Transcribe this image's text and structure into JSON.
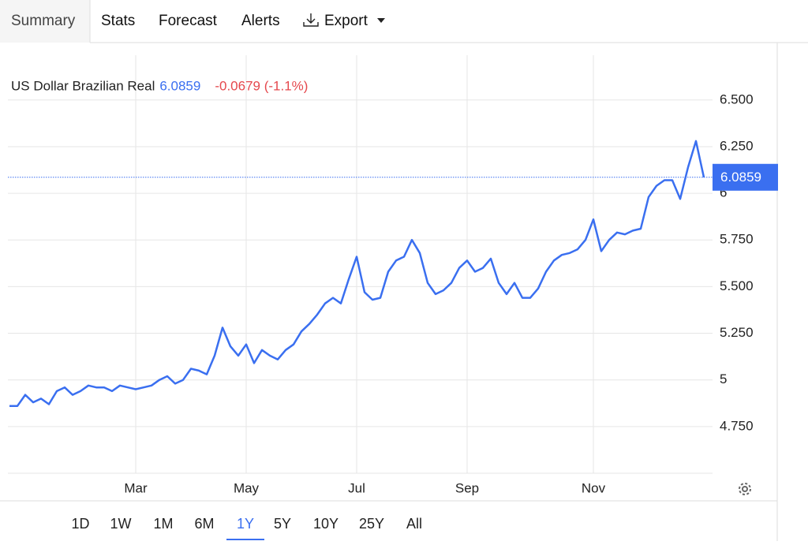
{
  "tabs": [
    "Summary",
    "Stats",
    "Forecast",
    "Alerts",
    "Export"
  ],
  "ranges": [
    "1D",
    "1W",
    "1M",
    "6M",
    "1Y",
    "5Y",
    "10Y",
    "25Y",
    "All"
  ],
  "selected_range": "1Y",
  "chart_data": {
    "type": "line",
    "title": "US Dollar Brazilian Real",
    "change": "-0.0679 (-1.1%)",
    "x": [
      0,
      1,
      2,
      3,
      4,
      5,
      6,
      7,
      8,
      9,
      10,
      11,
      12,
      13,
      14,
      15,
      16,
      17,
      18,
      19,
      20,
      21,
      22,
      23,
      24,
      25,
      26,
      27,
      28,
      29,
      30,
      31,
      32,
      33,
      34,
      35,
      36,
      37,
      38,
      39,
      40,
      41,
      42,
      43,
      44,
      45,
      46,
      47,
      48,
      49,
      50,
      51,
      52,
      53,
      54,
      55,
      56,
      57,
      58,
      59,
      60,
      61,
      62,
      63,
      64,
      65,
      66,
      67,
      68,
      69,
      70,
      71,
      72,
      73,
      74,
      75,
      76,
      77,
      78,
      79,
      80,
      81,
      82,
      83,
      84,
      85,
      86,
      87,
      88
    ],
    "series": [
      {
        "name": "US Dollar Brazilian Real",
        "color": "#3a6ff0",
        "values": [
          4.86,
          4.86,
          4.92,
          4.88,
          4.9,
          4.87,
          4.94,
          4.96,
          4.92,
          4.94,
          4.97,
          4.96,
          4.96,
          4.94,
          4.97,
          4.96,
          4.95,
          4.96,
          4.97,
          5.0,
          5.02,
          4.98,
          5.0,
          5.06,
          5.05,
          5.03,
          5.13,
          5.28,
          5.18,
          5.13,
          5.19,
          5.09,
          5.16,
          5.13,
          5.11,
          5.16,
          5.19,
          5.26,
          5.3,
          5.35,
          5.41,
          5.44,
          5.41,
          5.54,
          5.66,
          5.47,
          5.43,
          5.44,
          5.58,
          5.64,
          5.66,
          5.75,
          5.68,
          5.52,
          5.46,
          5.48,
          5.52,
          5.6,
          5.64,
          5.58,
          5.6,
          5.65,
          5.52,
          5.46,
          5.52,
          5.44,
          5.44,
          5.49,
          5.58,
          5.64,
          5.67,
          5.68,
          5.7,
          5.75,
          5.86,
          5.69,
          5.75,
          5.79,
          5.78,
          5.8,
          5.81,
          5.98,
          6.04,
          6.07,
          6.07,
          5.97,
          6.14,
          6.28,
          6.0859
        ]
      }
    ],
    "xlim": [
      -0.2,
      89.1
    ],
    "xticks": [
      {
        "value": 16,
        "label": "Mar"
      },
      {
        "value": 30,
        "label": "May"
      },
      {
        "value": 44,
        "label": "Jul"
      },
      {
        "value": 58,
        "label": "Sep"
      },
      {
        "value": 74,
        "label": "Nov"
      }
    ],
    "ylim": [
      4.5,
      6.74
    ],
    "yticks": [
      {
        "value": 4.75,
        "label": "4.750"
      },
      5,
      {
        "value": 5.25,
        "label": "5.250"
      },
      {
        "value": 5.5,
        "label": "5.500"
      },
      {
        "value": 5.75,
        "label": "5.750"
      },
      6,
      {
        "value": 6.25,
        "label": "6.250"
      },
      {
        "value": 6.5,
        "label": "6.500"
      }
    ],
    "grid": true
  }
}
